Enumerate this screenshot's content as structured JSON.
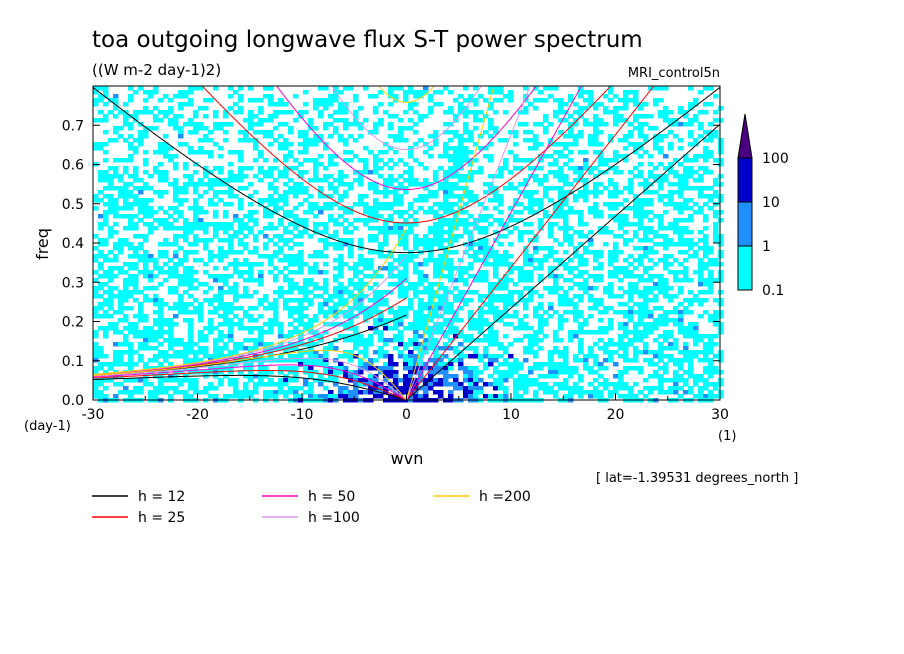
{
  "chart_data": {
    "type": "heatmap",
    "title": "toa outgoing longwave flux S-T power spectrum",
    "subtitle": "((W m-2 day-1)2)",
    "run_label": "MRI_control5n",
    "xlabel": "wvn",
    "ylabel": "freq",
    "x_unit": "(1)",
    "y_unit": "(day-1)",
    "annotation": "[ lat=-1.39531 degrees_north ]",
    "xlim": [
      -30,
      30
    ],
    "ylim": [
      0,
      0.8
    ],
    "xticks": [
      -30,
      -20,
      -10,
      0,
      10,
      20,
      30
    ],
    "xtick_labels": [
      "-30",
      "-20",
      "-10",
      "0",
      "10",
      "20",
      "30"
    ],
    "yticks": [
      0,
      0.1,
      0.2,
      0.3,
      0.4,
      0.5,
      0.6,
      0.7
    ],
    "ytick_labels": [
      "0.0",
      "0.1",
      "0.2",
      "0.3",
      "0.4",
      "0.5",
      "0.6",
      "0.7"
    ],
    "colorbar": {
      "levels": [
        0.1,
        1,
        10,
        100
      ],
      "labels": [
        "0.1",
        "1",
        "10",
        "100"
      ],
      "colors": [
        "#00ffff",
        "#1e90ff",
        "#0000cd",
        "#4b0082"
      ]
    },
    "series": [
      {
        "name": "h = 12",
        "h": 12,
        "color": "#000000"
      },
      {
        "name": "h = 25",
        "h": 25,
        "color": "#ff0000"
      },
      {
        "name": "h = 50",
        "h": 50,
        "color": "#ff00cc"
      },
      {
        "name": "h =100",
        "h": 100,
        "color": "#dd99ee"
      },
      {
        "name": "h =200",
        "h": 200,
        "color": "#ffcc00"
      }
    ]
  }
}
